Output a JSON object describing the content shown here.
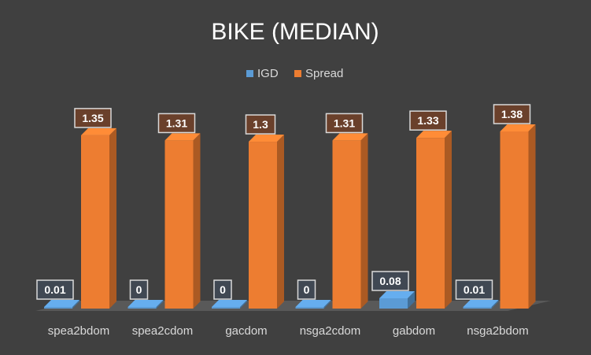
{
  "chart_data": {
    "type": "bar",
    "title": "BIKE (MEDIAN)",
    "categories": [
      "spea2bdom",
      "spea2cdom",
      "gacdom",
      "nsga2cdom",
      "gabdom",
      "nsga2bdom"
    ],
    "series": [
      {
        "name": "IGD",
        "values": [
          0.01,
          0,
          0,
          0,
          0.08,
          0.01
        ],
        "labels": [
          "0.01",
          "0",
          "0",
          "0",
          "0.08",
          "0.01"
        ]
      },
      {
        "name": "Spread",
        "values": [
          1.35,
          1.31,
          1.3,
          1.31,
          1.33,
          1.38
        ],
        "labels": [
          "1.35",
          "1.31",
          "1.3",
          "1.31",
          "1.33",
          "1.38"
        ]
      }
    ],
    "legend_position": "top",
    "grid": false,
    "style": "3d-column"
  },
  "colors": {
    "background": "#404040",
    "floor": "#595959",
    "igd": "#5b9bd5",
    "spread": "#ed7d31",
    "text": "#ffffff",
    "tick_text": "#d9d9d9",
    "label_bg": "#8c3f1a"
  }
}
